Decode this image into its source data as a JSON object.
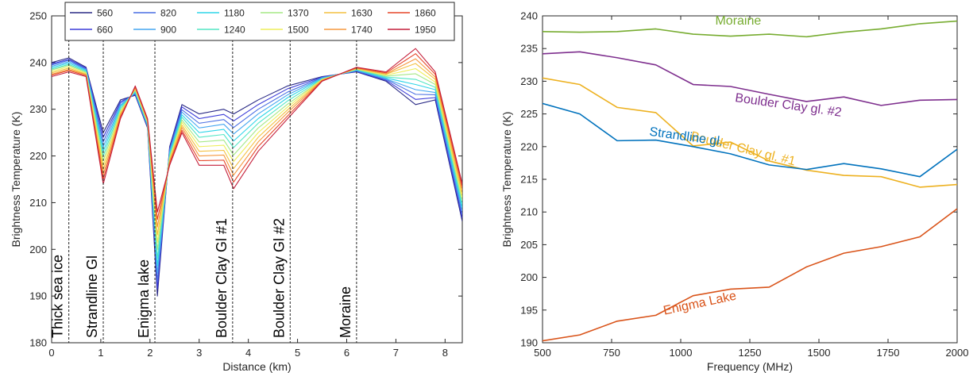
{
  "chart_data": [
    {
      "type": "line",
      "xlabel": "Distance (km)",
      "ylabel": "Brightness Temperature (K)",
      "xlim": [
        0,
        8.35
      ],
      "xticks": [
        0,
        1,
        2,
        3,
        4,
        5,
        6,
        7,
        8
      ],
      "ylim": [
        180,
        250
      ],
      "yticks": [
        180,
        190,
        200,
        210,
        220,
        230,
        240,
        250
      ],
      "legend": "top",
      "x": [
        0,
        0.35,
        0.7,
        1.05,
        1.4,
        1.7,
        1.95,
        2.15,
        2.4,
        2.65,
        3.0,
        3.5,
        3.7,
        4.2,
        4.8,
        5.5,
        6.2,
        6.8,
        7.4,
        7.8,
        8.35
      ],
      "series": [
        {
          "name": "560",
          "color": "#2a2a86",
          "values": [
            240,
            241,
            239,
            225,
            232,
            233,
            226,
            190,
            222,
            231,
            229,
            230,
            229,
            232,
            235,
            237,
            238,
            236,
            231,
            232,
            206
          ]
        },
        {
          "name": "660",
          "color": "#3b3bd8",
          "values": [
            239.7,
            240.7,
            238.8,
            224,
            231.6,
            233.2,
            226.2,
            191.6,
            221.6,
            230.5,
            228,
            228.9,
            227.5,
            231,
            234.4,
            236.9,
            238.1,
            236.2,
            232.1,
            232.5,
            206.7
          ]
        },
        {
          "name": "820",
          "color": "#4a6fe3",
          "values": [
            239.5,
            240.5,
            238.6,
            223,
            231.3,
            233.4,
            226.4,
            193.2,
            221.3,
            229.9,
            227,
            227.8,
            226.1,
            230,
            233.7,
            236.8,
            238.2,
            236.4,
            233.2,
            233.1,
            207.4
          ]
        },
        {
          "name": "900",
          "color": "#45a6f0",
          "values": [
            239.2,
            240.2,
            238.5,
            222,
            230.9,
            233.5,
            226.5,
            194.9,
            220.9,
            229.4,
            226,
            226.8,
            224.7,
            229,
            233.1,
            236.7,
            238.3,
            236.5,
            234.2,
            233.6,
            208.2
          ]
        },
        {
          "name": "1180",
          "color": "#2ed5e8",
          "values": [
            238.9,
            239.9,
            238.3,
            221,
            230.6,
            233.7,
            226.7,
            196.5,
            220.6,
            228.8,
            225,
            225.7,
            223.2,
            228,
            232.5,
            236.6,
            238.4,
            236.7,
            235.3,
            234.2,
            208.9
          ]
        },
        {
          "name": "1240",
          "color": "#52e6c4",
          "values": [
            238.6,
            239.6,
            238.1,
            220,
            230.2,
            233.9,
            226.9,
            198.1,
            220.2,
            228.3,
            224,
            224.6,
            221.8,
            227,
            231.8,
            236.5,
            238.5,
            236.9,
            236.4,
            234.7,
            209.6
          ]
        },
        {
          "name": "1370",
          "color": "#a6e886",
          "values": [
            238.4,
            239.4,
            237.9,
            219,
            229.8,
            234.1,
            227.1,
            199.9,
            219.8,
            227.7,
            223,
            223.4,
            220.2,
            226,
            231.1,
            236.4,
            238.6,
            237.1,
            237.6,
            235.3,
            210.4
          ]
        },
        {
          "name": "1500",
          "color": "#eeee5a",
          "values": [
            238.1,
            239.1,
            237.7,
            218,
            229.4,
            234.3,
            227.3,
            201.5,
            219.4,
            227.2,
            222,
            222.3,
            218.8,
            225,
            230.5,
            236.4,
            238.6,
            237.3,
            238.7,
            235.8,
            211.1
          ]
        },
        {
          "name": "1630",
          "color": "#f4c040",
          "values": [
            237.8,
            238.8,
            237.5,
            217,
            229.1,
            234.5,
            227.5,
            203.1,
            219.1,
            226.6,
            221,
            221.2,
            217.3,
            224,
            229.9,
            236.3,
            238.7,
            237.5,
            239.8,
            236.4,
            211.8
          ]
        },
        {
          "name": "1740",
          "color": "#f5983e",
          "values": [
            237.5,
            238.5,
            237.4,
            216,
            228.7,
            234.6,
            227.6,
            204.8,
            218.7,
            226.1,
            220,
            220.2,
            215.9,
            223,
            229.3,
            236.2,
            238.8,
            237.6,
            240.8,
            236.9,
            212.6
          ]
        },
        {
          "name": "1860",
          "color": "#e64628",
          "values": [
            237.3,
            238.3,
            237.2,
            215,
            228.4,
            234.8,
            227.8,
            206.4,
            218.4,
            225.5,
            219,
            219.1,
            214.4,
            222,
            228.6,
            236.1,
            238.9,
            237.8,
            241.9,
            237.5,
            213.3
          ]
        },
        {
          "name": "1950",
          "color": "#c41e3a",
          "values": [
            237,
            238,
            237,
            214,
            228,
            235,
            228,
            208,
            218,
            225,
            218,
            218,
            213,
            221,
            228,
            236,
            239,
            238,
            243,
            238,
            214
          ]
        }
      ],
      "annotations": [
        {
          "x": 0.35,
          "label": "Thick sea ice"
        },
        {
          "x": 1.05,
          "label": "Strandline Gl"
        },
        {
          "x": 2.1,
          "label": "Enigma lake"
        },
        {
          "x": 3.68,
          "label": "Boulder Clay Gl #1"
        },
        {
          "x": 4.85,
          "label": "Boulder Clay Gl #2"
        },
        {
          "x": 6.2,
          "label": "Moraine"
        }
      ]
    },
    {
      "type": "line",
      "xlabel": "Frequency (MHz)",
      "ylabel": "Brightness Temperature (K)",
      "xlim": [
        500,
        2000
      ],
      "xticks": [
        500,
        750,
        1000,
        1250,
        1500,
        1750,
        2000
      ],
      "ylim": [
        190,
        240
      ],
      "yticks": [
        190,
        195,
        200,
        205,
        210,
        215,
        220,
        225,
        230,
        235,
        240
      ],
      "x": [
        500,
        635,
        770,
        910,
        1045,
        1180,
        1320,
        1455,
        1590,
        1725,
        1865,
        2000
      ],
      "series": [
        {
          "name": "Moraine",
          "color": "#77ac30",
          "values": [
            237.6,
            237.5,
            237.6,
            238,
            237.2,
            236.9,
            237.2,
            236.8,
            237.5,
            238,
            238.8,
            239.2
          ]
        },
        {
          "name": "Boulder Clay gl. #2",
          "color": "#7e2f8e",
          "values": [
            234.2,
            234.5,
            233.6,
            232.5,
            229.5,
            229.2,
            228,
            226.9,
            227.6,
            226.3,
            227.1,
            227.2
          ]
        },
        {
          "name": "Boulder Clay gl. #1",
          "color": "#edb120",
          "values": [
            230.5,
            229.5,
            226,
            225.2,
            220.1,
            220.7,
            217.8,
            216.4,
            215.6,
            215.4,
            213.8,
            214.2
          ]
        },
        {
          "name": "Strandline gl.",
          "color": "#0072bd",
          "values": [
            226.6,
            225,
            220.9,
            221,
            220,
            218.9,
            217.2,
            216.5,
            217.4,
            216.6,
            215.4,
            219.6
          ]
        },
        {
          "name": "Enigma Lake",
          "color": "#d95319",
          "values": [
            190.3,
            191.2,
            193.3,
            194.2,
            197.2,
            198.2,
            198.5,
            201.6,
            203.7,
            204.7,
            206.2,
            210.5
          ]
        }
      ]
    }
  ]
}
